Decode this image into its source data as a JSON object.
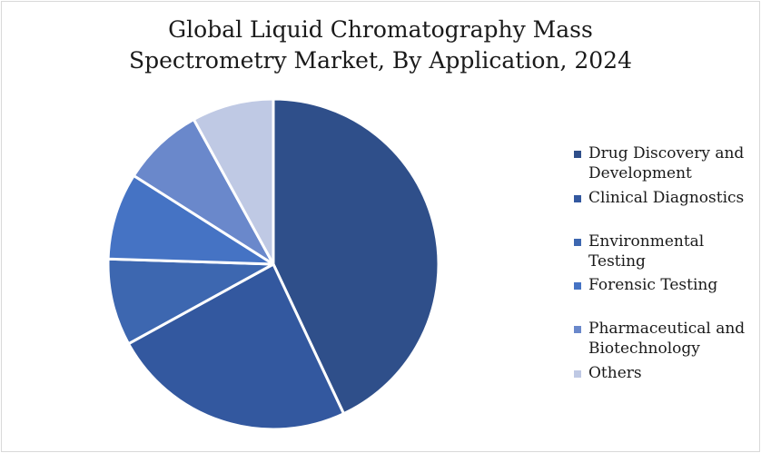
{
  "chart_data": {
    "type": "pie",
    "title": "Global Liquid Chromatography Mass Spectrometry Market, By Application, 2024",
    "title_lines": [
      "Global Liquid Chromatography Mass",
      "Spectrometry Market, By Application, 2024"
    ],
    "legend_position": "right",
    "slices": [
      {
        "label": "Drug Discovery and Development",
        "value": 43,
        "color": "#2f4f8a"
      },
      {
        "label": "Clinical Diagnostics",
        "value": 24,
        "color": "#33589f"
      },
      {
        "label": "Environmental Testing",
        "value": 8.5,
        "color": "#3d67b0"
      },
      {
        "label": "Forensic Testing",
        "value": 8.5,
        "color": "#4573c4"
      },
      {
        "label": "Pharmaceutical and Biotechnology",
        "value": 8,
        "color": "#6a88cb"
      },
      {
        "label": "Others",
        "value": 8,
        "color": "#bfc9e4"
      }
    ]
  }
}
